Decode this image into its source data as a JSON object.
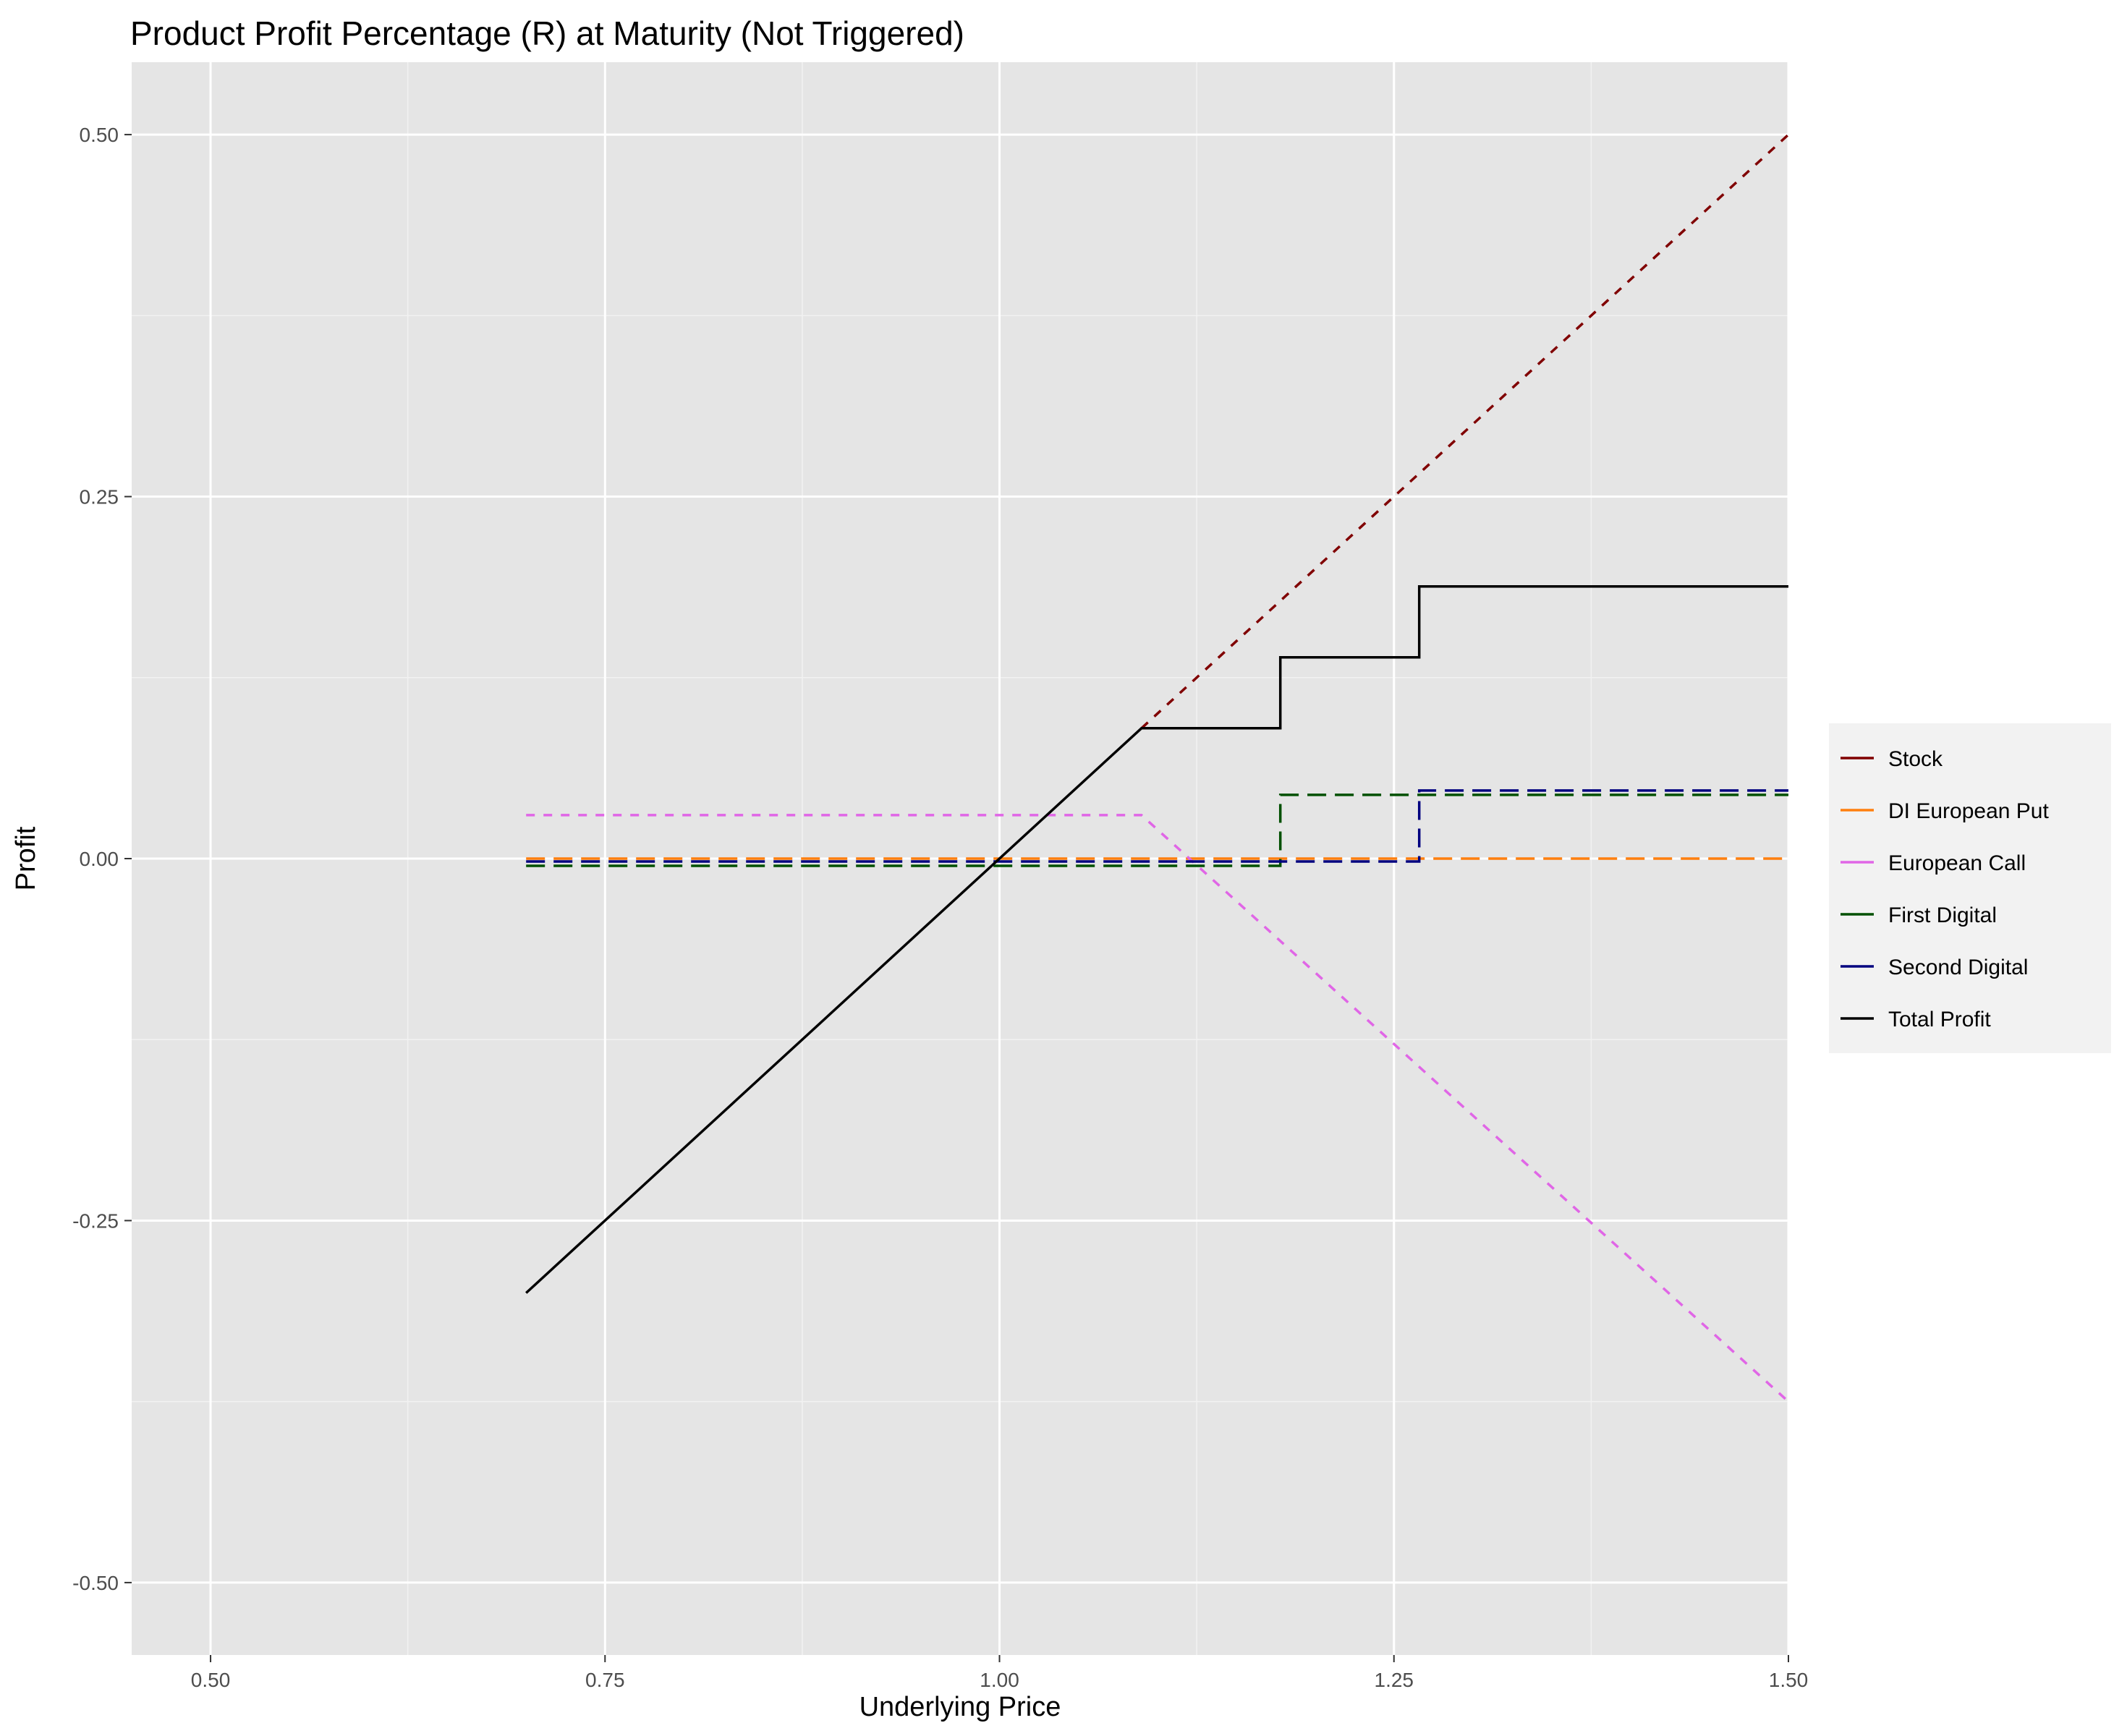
{
  "chart_data": {
    "type": "line",
    "title": "Product Profit Percentage (R) at Maturity (Not Triggered)",
    "xlabel": "Underlying Price",
    "ylabel": "Profit",
    "xlim": [
      0.45,
      1.5
    ],
    "ylim": [
      -0.55,
      0.55
    ],
    "x_ticks": [
      0.5,
      0.75,
      1.0,
      1.25,
      1.5
    ],
    "x_tick_labels": [
      "0.50",
      "0.75",
      "1.00",
      "1.25",
      "1.50"
    ],
    "y_ticks": [
      -0.5,
      -0.25,
      0.0,
      0.25,
      0.5
    ],
    "y_tick_labels": [
      "-0.50",
      "-0.25",
      "0.00",
      "0.25",
      "0.50"
    ],
    "grid": true,
    "background": "#e5e5e5",
    "legend_position": "right",
    "series": [
      {
        "name": "Stock",
        "color": "#800000",
        "dash": "dashed",
        "x": [
          1.09,
          1.5
        ],
        "y": [
          0.09,
          0.5
        ]
      },
      {
        "name": "DI European Put",
        "color": "#ff7f0e",
        "dash": "longdash",
        "x": [
          0.7,
          1.5
        ],
        "y": [
          0.0,
          0.0
        ]
      },
      {
        "name": "European Call",
        "color": "#e066e6",
        "dash": "dashed",
        "x": [
          0.7,
          1.09,
          1.5
        ],
        "y": [
          0.03,
          0.03,
          -0.375
        ]
      },
      {
        "name": "First Digital",
        "color": "#005000",
        "dash": "longdash",
        "x": [
          0.7,
          1.178,
          1.178,
          1.5
        ],
        "y": [
          -0.005,
          -0.005,
          0.044,
          0.044
        ]
      },
      {
        "name": "Second Digital",
        "color": "#00007f",
        "dash": "longdash",
        "x": [
          0.7,
          1.266,
          1.266,
          1.5
        ],
        "y": [
          -0.002,
          -0.002,
          0.047,
          0.047
        ]
      },
      {
        "name": "Total Profit",
        "color": "#000000",
        "dash": "solid",
        "x": [
          0.7,
          1.09,
          1.178,
          1.178,
          1.266,
          1.266,
          1.5
        ],
        "y": [
          -0.3,
          0.09,
          0.09,
          0.139,
          0.139,
          0.188,
          0.188
        ]
      }
    ]
  }
}
